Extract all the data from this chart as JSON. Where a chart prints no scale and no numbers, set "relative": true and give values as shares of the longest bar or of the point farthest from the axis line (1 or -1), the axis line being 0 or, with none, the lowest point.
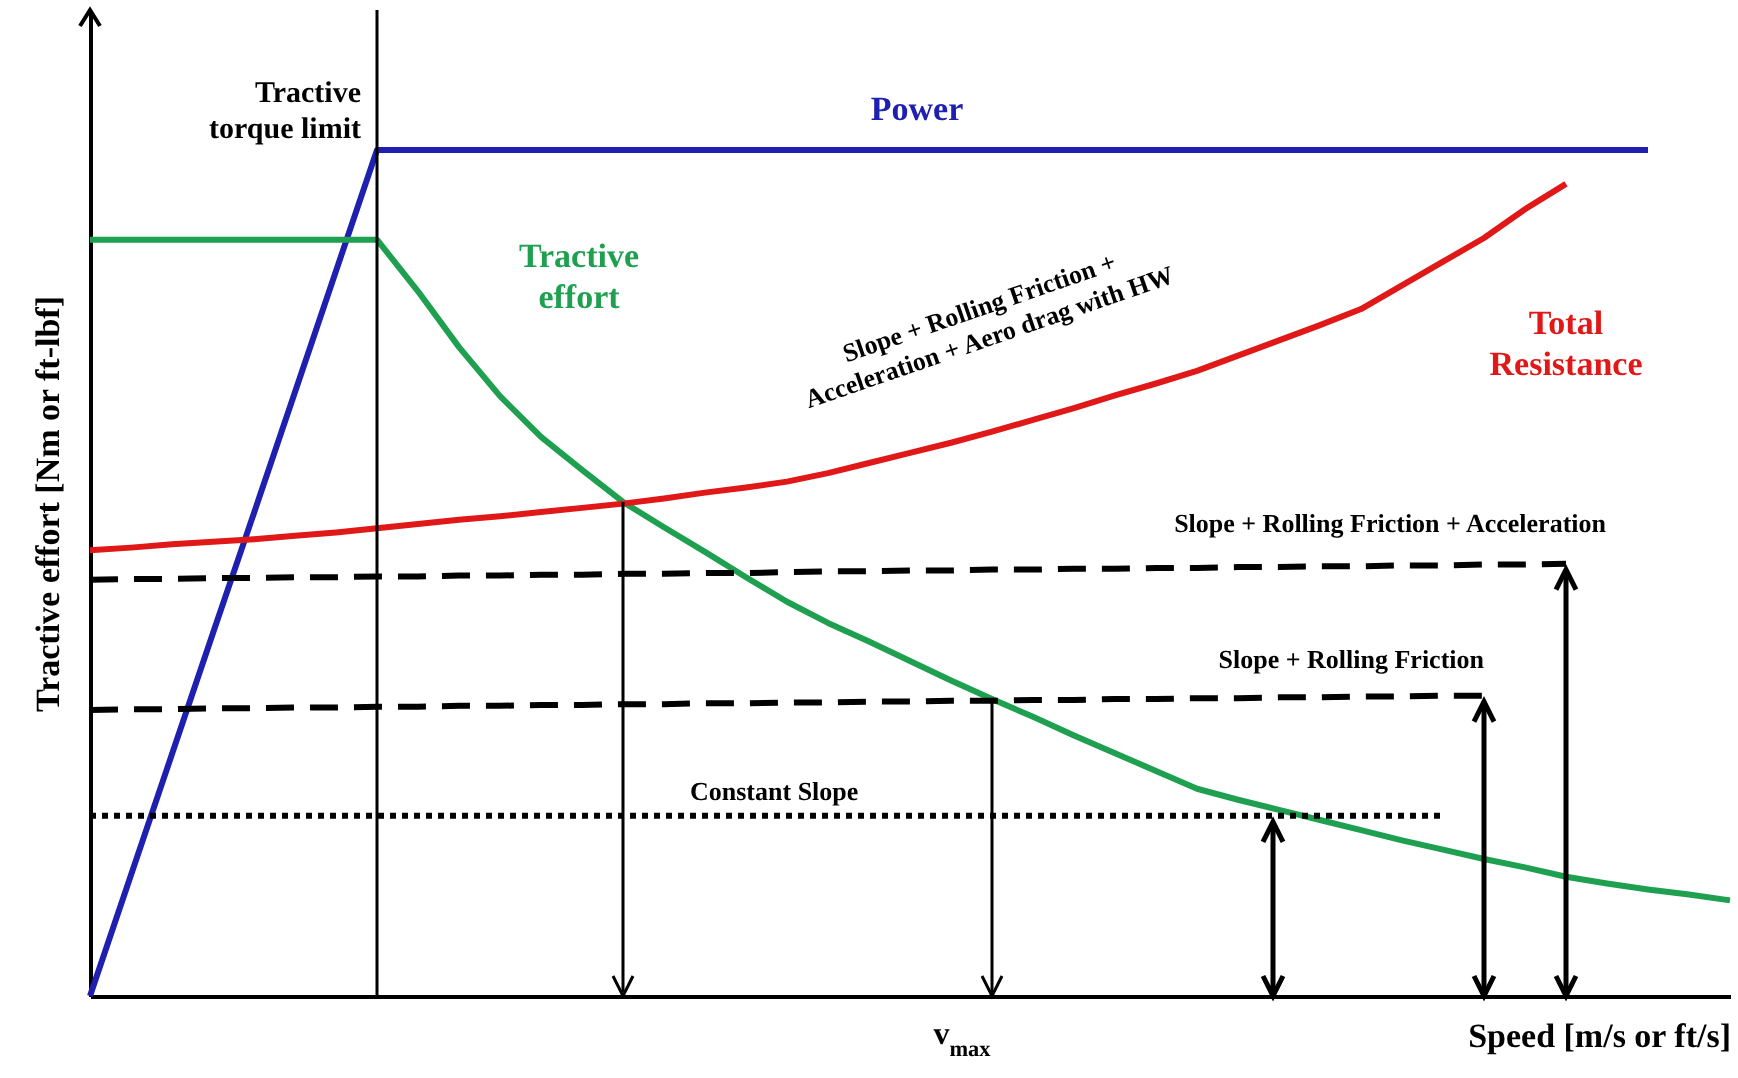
{
  "chart_data": {
    "type": "line",
    "relative": true,
    "xlabel": "Speed [m/s or ft/s]",
    "ylabel": "Tractive effort [Nm or ft-lbf]",
    "grid": false,
    "marker": "none",
    "categories": [
      null,
      null,
      null,
      null,
      null,
      null,
      null,
      null,
      null,
      null,
      null,
      null,
      null,
      null,
      null,
      null,
      null,
      null,
      null,
      null,
      null,
      null,
      null,
      null,
      null,
      null,
      null,
      null,
      null,
      null,
      null,
      null,
      null,
      null,
      null,
      null,
      null,
      null,
      null,
      null,
      null
    ],
    "annotations": [
      "Tractive torque limit",
      "Slope + Rolling Friction + Acceleration + Aero drag with HW",
      "v$_{max}$"
    ],
    "series": [
      {
        "name": "Power",
        "color": "#2020b0",
        "line_style": "solid",
        "values": [
          0,
          0.143,
          0.286,
          0.429,
          0.571,
          0.714,
          0.857,
          1,
          1,
          1,
          1,
          1,
          1,
          1,
          1,
          1,
          1,
          1,
          1,
          1,
          1,
          1,
          1,
          1,
          1,
          1,
          1,
          1,
          1,
          1,
          1,
          1,
          1,
          1,
          1,
          1,
          1,
          1,
          1,
          null,
          null
        ]
      },
      {
        "name": "Tractive effort",
        "color": "#1fa050",
        "line_style": "solid",
        "values": [
          0.894,
          0.894,
          0.894,
          0.894,
          0.894,
          0.894,
          0.894,
          0.894,
          0.833,
          0.767,
          0.709,
          0.661,
          0.622,
          0.584,
          0.554,
          0.525,
          0.495,
          0.466,
          0.441,
          0.419,
          0.396,
          0.373,
          0.351,
          0.33,
          0.308,
          0.287,
          0.266,
          0.245,
          0.232,
          0.22,
          0.208,
          0.196,
          0.184,
          0.173,
          0.162,
          0.152,
          0.141,
          0.133,
          0.126,
          0.12,
          0.113
        ]
      },
      {
        "name": "Total Resistance",
        "color": "#e01818",
        "line_style": "solid",
        "values": [
          0.527,
          0.53,
          0.534,
          0.537,
          0.54,
          0.544,
          0.548,
          0.553,
          0.558,
          0.563,
          0.567,
          0.572,
          0.577,
          0.582,
          0.588,
          0.595,
          0.601,
          0.608,
          0.618,
          0.63,
          0.642,
          0.654,
          0.667,
          0.681,
          0.695,
          0.71,
          0.724,
          0.739,
          0.757,
          0.775,
          0.793,
          0.812,
          0.84,
          0.868,
          0.896,
          0.93,
          0.96,
          null,
          null,
          null,
          null
        ]
      },
      {
        "name": "Slope + Rolling Friction + Acceleration",
        "color": "#000000",
        "line_style": "dashed",
        "values": [
          0.492,
          0.493,
          0.493,
          0.494,
          0.494,
          0.495,
          0.495,
          0.496,
          0.496,
          0.497,
          0.497,
          0.498,
          0.498,
          0.499,
          0.499,
          0.5,
          0.5,
          0.501,
          0.502,
          0.502,
          0.503,
          0.503,
          0.504,
          0.504,
          0.505,
          0.505,
          0.506,
          0.506,
          0.507,
          0.507,
          0.508,
          0.508,
          0.509,
          0.509,
          0.51,
          0.51,
          0.511,
          null,
          null,
          null,
          null
        ]
      },
      {
        "name": "Slope + Rolling Friction",
        "color": "#000000",
        "line_style": "dashed",
        "values": [
          0.338,
          0.339,
          0.339,
          0.34,
          0.34,
          0.341,
          0.341,
          0.342,
          0.342,
          0.343,
          0.343,
          0.344,
          0.344,
          0.345,
          0.345,
          0.346,
          0.346,
          0.347,
          0.347,
          0.348,
          0.348,
          0.349,
          0.349,
          0.35,
          0.35,
          0.351,
          0.351,
          0.352,
          0.352,
          0.353,
          0.353,
          0.354,
          0.354,
          0.355,
          0.355,
          null,
          null,
          null,
          null,
          null,
          null
        ]
      },
      {
        "name": "Constant Slope",
        "color": "#000000",
        "line_style": "dotted",
        "values": [
          0.213,
          0.213,
          0.213,
          0.213,
          0.213,
          0.213,
          0.213,
          0.213,
          0.213,
          0.213,
          0.213,
          0.213,
          0.213,
          0.213,
          0.213,
          0.213,
          0.213,
          0.213,
          0.213,
          0.213,
          0.213,
          0.213,
          0.213,
          0.213,
          0.213,
          0.213,
          0.213,
          0.213,
          0.213,
          0.213,
          0.213,
          0.213,
          0.213,
          0.213,
          null,
          null,
          null,
          null,
          null,
          null,
          null
        ]
      }
    ]
  }
}
